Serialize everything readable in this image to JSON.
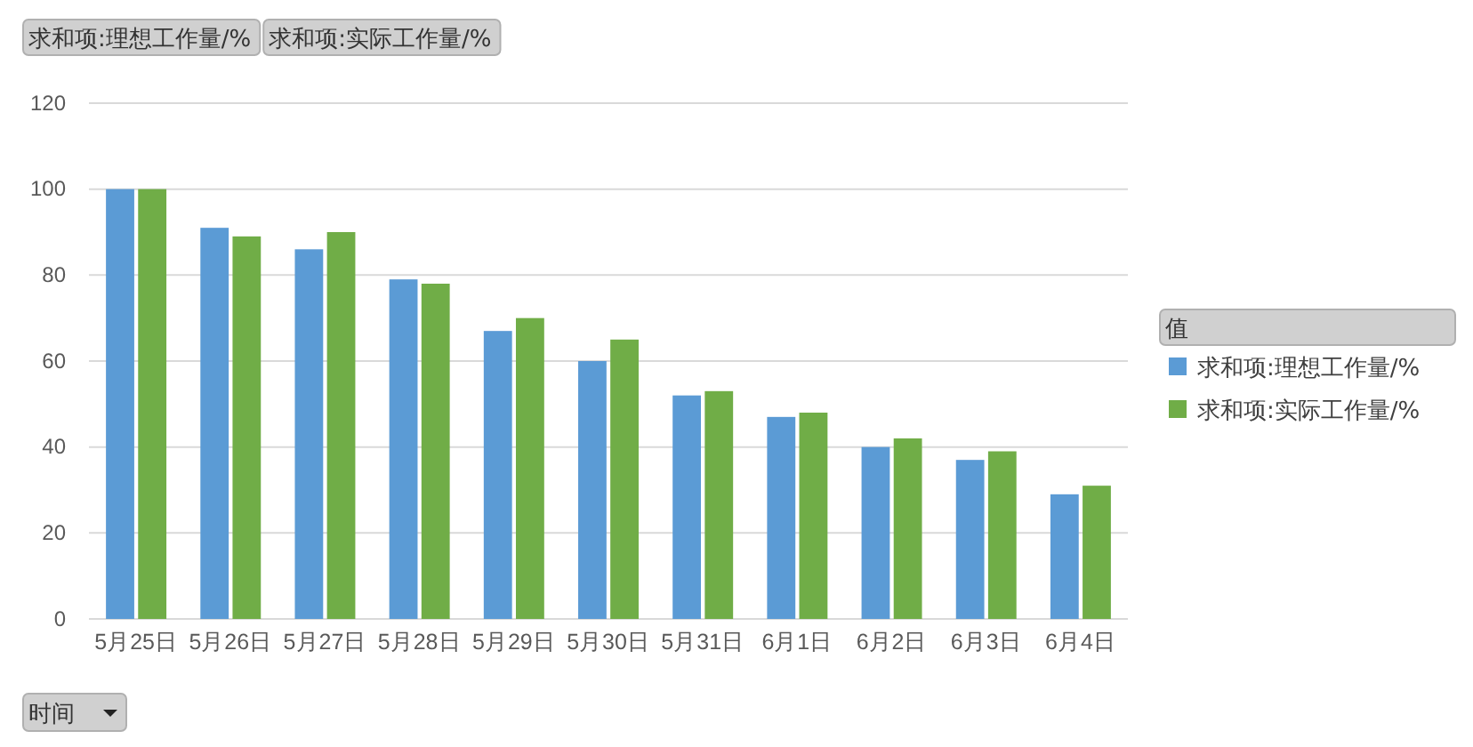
{
  "chart_data": {
    "type": "bar",
    "categories": [
      "5月25日",
      "5月26日",
      "5月27日",
      "5月28日",
      "5月29日",
      "5月30日",
      "5月31日",
      "6月1日",
      "6月2日",
      "6月3日",
      "6月4日"
    ],
    "series": [
      {
        "name": "求和项:理想工作量/%",
        "color": "#5b9bd5",
        "values": [
          100,
          91,
          86,
          79,
          67,
          60,
          52,
          47,
          40,
          37,
          29
        ]
      },
      {
        "name": "求和项:实际工作量/%",
        "color": "#70ad47",
        "values": [
          100,
          89,
          90,
          78,
          70,
          65,
          53,
          48,
          42,
          39,
          31
        ]
      }
    ],
    "ylim": [
      0,
      120
    ],
    "yticks": [
      0,
      20,
      40,
      60,
      80,
      100,
      120
    ],
    "grid": "y",
    "legend": "right",
    "legend_title": "值",
    "xlabel": "时间",
    "annotations": [
      "求和项:理想工作量/%",
      "求和项:实际工作量/%"
    ]
  }
}
